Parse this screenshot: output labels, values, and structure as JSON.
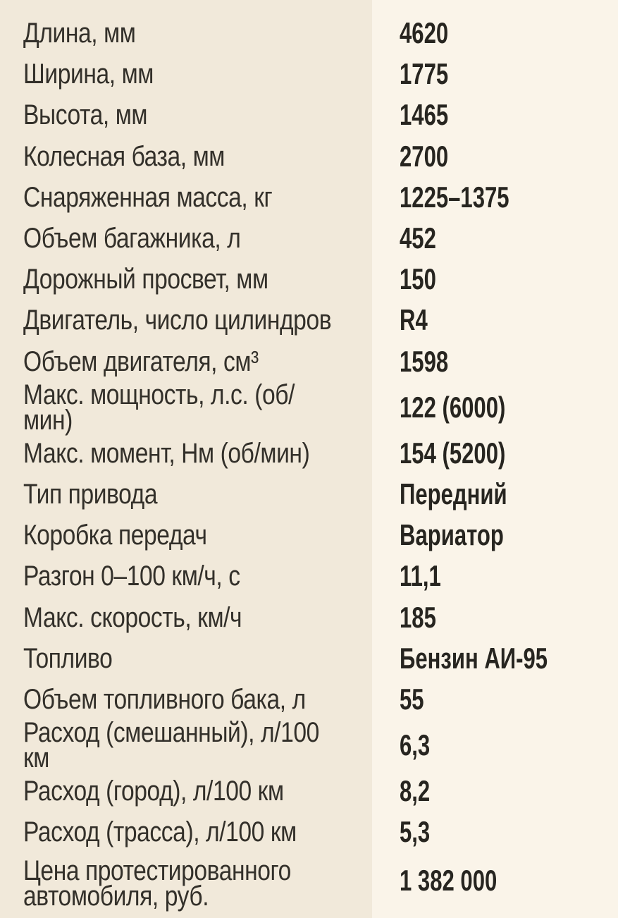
{
  "page": {
    "kind": "car-specifications-table",
    "colors": {
      "label_column_bg": "#f1e9da",
      "value_column_bg": "#faf4e9",
      "label_text": "#33302a",
      "value_text": "#272520"
    }
  },
  "table": {
    "rows": [
      {
        "label": "Длина, мм",
        "value": "4620"
      },
      {
        "label": "Ширина, мм",
        "value": "1775"
      },
      {
        "label": "Высота, мм",
        "value": "1465"
      },
      {
        "label": "Колесная база, мм",
        "value": "2700"
      },
      {
        "label": "Снаряженная масса, кг",
        "value": "1225–1375"
      },
      {
        "label": "Объем багажника, л",
        "value": "452"
      },
      {
        "label": "Дорожный просвет, мм",
        "value": "150"
      },
      {
        "label": "Двигатель, число цилиндров",
        "value": "R4"
      },
      {
        "label": "Объем двигателя, см³",
        "value": "1598"
      },
      {
        "label": "Макс. мощность, л.с. (об/мин)",
        "value": "122 (6000)"
      },
      {
        "label": "Макс. момент, Нм (об/мин)",
        "value": "154 (5200)"
      },
      {
        "label": "Тип привода",
        "value": "Передний"
      },
      {
        "label": "Коробка передач",
        "value": "Вариатор"
      },
      {
        "label": "Разгон 0–100 км/ч, с",
        "value": "11,1"
      },
      {
        "label": "Макс. скорость, км/ч",
        "value": "185"
      },
      {
        "label": "Топливо",
        "value": "Бензин АИ-95"
      },
      {
        "label": "Объем топливного бака, л",
        "value": "55"
      },
      {
        "label": "Расход (смешанный), л/100 км",
        "value": "6,3"
      },
      {
        "label": "Расход (город), л/100 км",
        "value": "8,2"
      },
      {
        "label": "Расход (трасса), л/100 км",
        "value": "5,3"
      },
      {
        "label": "Цена протестированного\nавтомобиля, руб.",
        "value": "1 382 000"
      }
    ]
  }
}
